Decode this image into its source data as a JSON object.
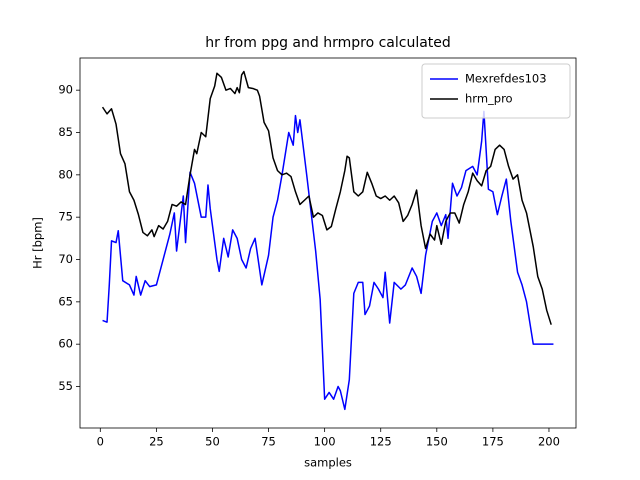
{
  "chart_data": {
    "type": "line",
    "title": "hr from ppg and hrmpro calculated",
    "xlabel": "samples",
    "ylabel": "Hr [bpm]",
    "xlim": [
      -9.05,
      212.05
    ],
    "ylim": [
      50.1,
      93.8
    ],
    "xticks": [
      0,
      25,
      50,
      75,
      100,
      125,
      150,
      175,
      200
    ],
    "yticks": [
      55,
      60,
      65,
      70,
      75,
      80,
      85,
      90
    ],
    "legend": "upper right",
    "series": [
      {
        "name": "Mexrefdes103",
        "color": "#0000ff",
        "x": [
          1,
          3,
          4,
          5,
          7,
          8,
          10,
          13,
          15,
          16,
          18,
          20,
          22,
          25,
          28,
          31,
          33,
          34,
          37,
          38,
          40,
          42,
          45,
          47,
          48,
          49,
          52,
          53,
          55,
          57,
          59,
          61,
          63,
          65,
          67,
          69,
          72,
          75,
          77,
          79,
          81,
          84,
          86,
          87,
          88,
          89,
          92,
          96,
          98,
          100,
          102,
          104,
          106,
          107,
          109,
          111,
          113,
          115,
          117,
          118,
          120,
          122,
          124,
          126,
          127,
          129,
          131,
          134,
          136,
          139,
          141,
          143,
          145,
          148,
          150,
          152,
          154,
          155,
          157,
          159,
          161,
          163,
          166,
          168,
          170,
          171,
          173,
          175,
          177,
          179,
          181,
          183,
          186,
          188,
          190,
          193,
          202
        ],
        "values": [
          62.8,
          62.6,
          67,
          72.2,
          72,
          73.4,
          67.5,
          67,
          65.8,
          68,
          65.8,
          67.5,
          66.8,
          67,
          70,
          73,
          75.5,
          71,
          77.5,
          72,
          80.3,
          79,
          75,
          75,
          78.8,
          76,
          70,
          68.6,
          72.5,
          70.3,
          73.5,
          72.5,
          70,
          69,
          71.3,
          72.5,
          67,
          70.5,
          75,
          77,
          80,
          85,
          83.5,
          87,
          85,
          86.5,
          80,
          71,
          65.3,
          53.5,
          54.3,
          53.5,
          55,
          54.5,
          52.3,
          55.8,
          66,
          67.3,
          67.3,
          63.5,
          64.5,
          67.3,
          66.5,
          65.5,
          68.5,
          62.5,
          67.3,
          66.5,
          67,
          69,
          68,
          66,
          70.5,
          74.5,
          75.5,
          74,
          75.3,
          72.5,
          79,
          77.5,
          78.5,
          80.5,
          81,
          80,
          84,
          87.5,
          78.3,
          78,
          75.3,
          77.5,
          79.5,
          74.5,
          68.5,
          67,
          65,
          60,
          60
        ]
      },
      {
        "name": "hrm_pro",
        "color": "#000000",
        "x": [
          1,
          3,
          5,
          7,
          9,
          11,
          13,
          15,
          17,
          19,
          21,
          23,
          24,
          26,
          28,
          30,
          32,
          34,
          36,
          38,
          40,
          42,
          43,
          45,
          47,
          49,
          51,
          52,
          54,
          56,
          58,
          60,
          61,
          62,
          63,
          64,
          66,
          68,
          70,
          71,
          73,
          75,
          77,
          79,
          81,
          83,
          85,
          87,
          89,
          91,
          93,
          95,
          97,
          99,
          101,
          103,
          105,
          107,
          109,
          110,
          111,
          113,
          115,
          117,
          119,
          121,
          123,
          125,
          127,
          129,
          131,
          133,
          135,
          137,
          139,
          141,
          143,
          145,
          147,
          149,
          150,
          152,
          154,
          156,
          158,
          160,
          162,
          164,
          166,
          168,
          170,
          172,
          174,
          176,
          178,
          180,
          182,
          184,
          186,
          188,
          190,
          193,
          195,
          197,
          199,
          201
        ],
        "values": [
          88,
          87.2,
          87.8,
          86,
          82.5,
          81.3,
          78,
          77,
          75.3,
          73.2,
          72.8,
          73.5,
          72.7,
          74,
          73.6,
          74.5,
          76.5,
          76.3,
          76.8,
          76.5,
          80,
          83,
          82.5,
          85,
          84.5,
          89,
          90.5,
          92,
          91.5,
          90,
          90.2,
          89.6,
          90.3,
          89.7,
          91.8,
          92.2,
          90.3,
          90.2,
          90,
          89.3,
          86.2,
          85.2,
          82,
          80.5,
          80,
          80.2,
          79.8,
          78,
          76.5,
          77,
          77.5,
          75,
          75.5,
          75.2,
          73.5,
          73.9,
          76,
          78,
          80.5,
          82.2,
          82,
          78,
          77.5,
          78,
          80.3,
          79,
          77.5,
          77.2,
          77.5,
          77,
          77.5,
          76.7,
          74.5,
          75.2,
          76.5,
          78.2,
          74,
          71.3,
          73,
          72.3,
          74,
          71.8,
          74.5,
          75.5,
          75.5,
          74.3,
          76.5,
          78,
          80.2,
          79.3,
          78.7,
          80.5,
          81,
          83,
          83.5,
          83,
          81,
          79.5,
          80,
          77,
          75.5,
          71.5,
          68,
          66.5,
          64,
          62.3
        ]
      }
    ]
  }
}
